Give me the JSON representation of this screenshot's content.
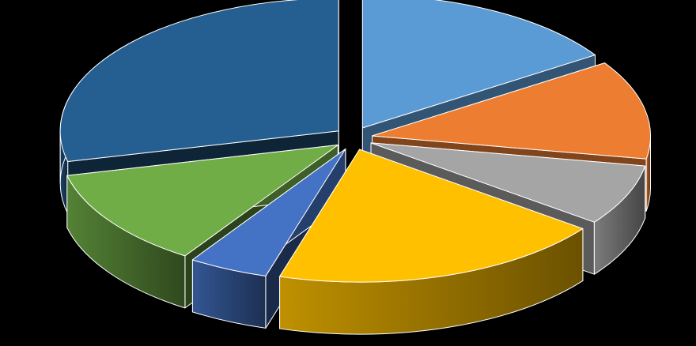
{
  "chart_data": {
    "type": "pie",
    "style": "3d-exploded",
    "legend": "none",
    "slices": [
      {
        "value": 17,
        "color": "#5B9BD5"
      },
      {
        "value": 13,
        "color": "#ED7D31"
      },
      {
        "value": 8,
        "color": "#A5A5A5"
      },
      {
        "value": 21,
        "color": "#FFC000"
      },
      {
        "value": 5,
        "color": "#4472C4"
      },
      {
        "value": 13,
        "color": "#70AD47"
      },
      {
        "value": 31,
        "color": "#255E91"
      }
    ]
  }
}
